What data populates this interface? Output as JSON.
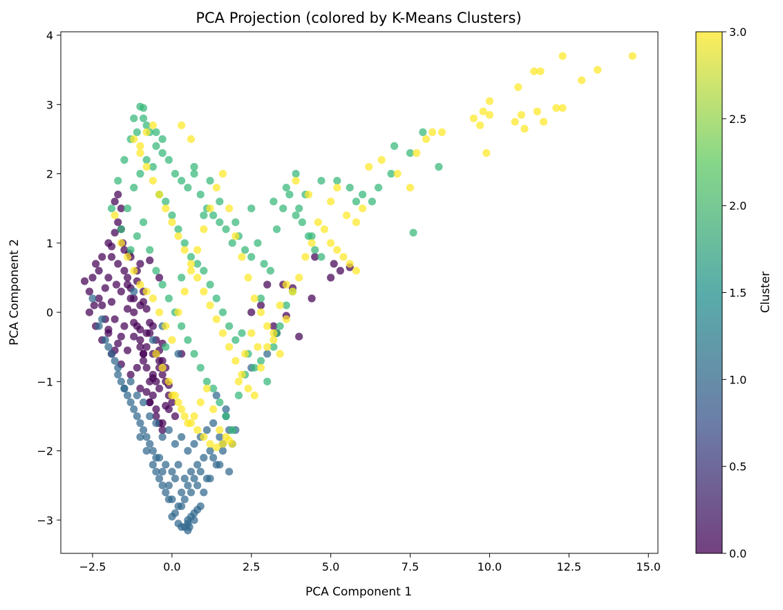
{
  "chart_data": {
    "type": "scatter",
    "title": "PCA Projection (colored by K-Means Clusters)",
    "xlabel": "PCA Component 1",
    "ylabel": "PCA Component 2",
    "xlim": [
      -3.5,
      15.3
    ],
    "ylim": [
      -3.48,
      4.05
    ],
    "xticks": [
      -2.5,
      0.0,
      2.5,
      5.0,
      7.5,
      10.0,
      12.5,
      15.0
    ],
    "xtick_labels": [
      "−2.5",
      "0.0",
      "2.5",
      "5.0",
      "7.5",
      "10.0",
      "12.5",
      "15.0"
    ],
    "yticks": [
      -3,
      -2,
      -1,
      0,
      1,
      2,
      3,
      4
    ],
    "ytick_labels": [
      "−3",
      "−2",
      "−1",
      "0",
      "1",
      "2",
      "3",
      "4"
    ],
    "grid": false,
    "colorbar": {
      "label": "Cluster",
      "range": [
        0.0,
        3.0
      ],
      "ticks": [
        0.0,
        0.5,
        1.0,
        1.5,
        2.0,
        2.5,
        3.0
      ],
      "tick_labels": [
        "0.0",
        "0.5",
        "1.0",
        "1.5",
        "2.0",
        "2.5",
        "3.0"
      ],
      "colormap": "viridis",
      "stops": [
        "#440154",
        "#3b528b",
        "#21918c",
        "#5ec962",
        "#fde725"
      ]
    },
    "cluster_colors": {
      "0": "#440154",
      "1": "#31688e",
      "2": "#35b779",
      "3": "#fde725"
    },
    "series": [
      {
        "cluster": 0,
        "x": [
          -2.75,
          -2.6,
          -2.5,
          -2.45,
          -2.4,
          -2.3,
          -2.2,
          -2.1,
          -2.0,
          -1.9,
          -1.8,
          -1.7,
          -1.6,
          -1.5,
          -1.4,
          -1.3,
          -1.2,
          -1.1,
          -1.0,
          -0.9,
          -0.8,
          -0.7,
          -0.6,
          -0.5,
          -0.4,
          -0.3,
          -2.6,
          -2.4,
          -2.2,
          -2.0,
          -1.8,
          -1.6,
          -1.4,
          -1.2,
          -1.0,
          -0.8,
          -0.6,
          -0.4,
          -2.3,
          -2.1,
          -1.9,
          -1.7,
          -1.5,
          -1.3,
          -1.1,
          -0.9,
          -0.7,
          -0.5,
          -0.3,
          -0.1,
          -2.2,
          -2.0,
          -1.8,
          -1.6,
          -1.4,
          -1.2,
          -1.0,
          -0.8,
          -0.6,
          -0.4,
          -0.2,
          0.0,
          -1.9,
          -1.7,
          -1.5,
          -1.3,
          -1.1,
          -0.9,
          -0.7,
          -0.5,
          -0.3,
          -0.1,
          0.1,
          -1.6,
          -1.4,
          -1.2,
          -1.0,
          -0.8,
          -0.6,
          -0.4,
          -0.2,
          -1.3,
          -1.1,
          -0.9,
          -0.7,
          -0.5,
          -0.3,
          -0.1,
          -1.0,
          -0.8,
          -0.6,
          -0.4,
          -0.2,
          -0.7,
          -0.5,
          -0.3,
          -2.0,
          -1.9,
          -1.8,
          -1.7,
          -1.6,
          -1.75,
          -1.55,
          -1.35,
          -1.0,
          -0.9,
          -0.7,
          -0.4,
          0.3,
          2.5,
          3.0,
          3.3,
          3.5,
          3.8,
          4.4,
          4.5,
          5.0,
          5.3,
          5.6,
          5.1,
          2.8,
          3.2,
          3.6,
          4.0
        ],
        "y": [
          0.45,
          0.3,
          0.5,
          0.1,
          0.7,
          0.2,
          0.8,
          -0.1,
          0.5,
          0.95,
          1.15,
          1.3,
          1.2,
          0.6,
          0.4,
          0.2,
          0.0,
          -0.2,
          -0.4,
          -0.6,
          -0.8,
          -1.0,
          -1.2,
          -1.4,
          -1.6,
          -1.7,
          0.0,
          -0.2,
          0.1,
          -0.3,
          -0.1,
          0.3,
          0.5,
          0.2,
          -0.5,
          -0.3,
          -0.9,
          -1.1,
          0.6,
          0.35,
          0.15,
          0.7,
          0.9,
          0.8,
          0.6,
          -0.7,
          -1.3,
          -1.0,
          -0.7,
          -1.2,
          -0.4,
          -0.25,
          -0.55,
          -0.35,
          0.05,
          -0.15,
          -0.25,
          -0.5,
          -0.6,
          -0.8,
          -1.0,
          -1.3,
          -0.6,
          -0.45,
          -0.2,
          0.35,
          0.45,
          0.15,
          -0.15,
          -0.4,
          -0.9,
          -1.05,
          -1.5,
          -0.75,
          -0.55,
          -0.35,
          0.1,
          0.05,
          -0.2,
          -0.55,
          -0.8,
          -0.9,
          -0.8,
          -0.6,
          -0.3,
          -0.6,
          -0.45,
          -1.4,
          -1.1,
          -1.15,
          -0.95,
          -0.7,
          -1.35,
          -1.3,
          -1.5,
          -1.6,
          1.0,
          0.8,
          1.6,
          1.7,
          1.5,
          0.4,
          1.0,
          0.85,
          0.7,
          0.3,
          0.75,
          0.5,
          -0.6,
          0.0,
          0.4,
          -0.3,
          0.4,
          0.35,
          0.2,
          0.8,
          0.5,
          0.6,
          0.65,
          0.7,
          0.1,
          -0.2,
          -0.05,
          -0.35
        ]
      },
      {
        "cluster": 1,
        "x": [
          -2.5,
          -2.3,
          -2.1,
          -1.9,
          -1.7,
          -1.5,
          -1.3,
          -1.1,
          -0.9,
          -0.7,
          -0.5,
          -0.3,
          -0.1,
          0.1,
          0.3,
          0.5,
          0.7,
          0.9,
          1.1,
          1.3,
          1.5,
          1.7,
          -2.2,
          -2.0,
          -1.8,
          -1.6,
          -1.4,
          -1.2,
          -1.0,
          -0.8,
          -0.6,
          -0.4,
          -0.2,
          0.0,
          0.2,
          0.4,
          0.6,
          0.8,
          1.0,
          1.2,
          1.4,
          1.6,
          1.8,
          -1.7,
          -1.5,
          -1.3,
          -1.1,
          -0.9,
          -0.7,
          -0.5,
          -0.3,
          -0.1,
          0.1,
          0.3,
          0.5,
          0.7,
          0.9,
          1.1,
          1.3,
          1.5,
          -1.0,
          -0.8,
          -0.6,
          -0.4,
          -0.2,
          0.0,
          0.2,
          0.4,
          0.6,
          0.8,
          1.0,
          1.2,
          -0.5,
          -0.3,
          -0.1,
          0.1,
          0.3,
          0.5,
          0.7,
          0.9,
          0.0,
          0.2,
          0.4,
          0.6,
          0.8,
          0.3,
          0.5,
          0.7,
          0.5,
          0.55,
          1.6,
          1.9,
          2.0,
          1.8,
          0.2,
          -0.6,
          1.7,
          1.4,
          2.5,
          3.0,
          -1.2,
          -0.3
        ],
        "y": [
          0.2,
          -0.2,
          -0.4,
          -0.6,
          -0.8,
          -1.1,
          -1.0,
          -1.2,
          -1.3,
          -1.5,
          -1.6,
          -1.8,
          -1.7,
          -1.9,
          -1.8,
          -2.0,
          -1.9,
          -1.8,
          -1.7,
          -1.6,
          -1.8,
          -1.5,
          -0.1,
          -0.5,
          -0.7,
          -1.0,
          -1.2,
          -1.4,
          -1.6,
          -1.8,
          -2.0,
          -2.1,
          -2.2,
          -2.3,
          -2.2,
          -2.4,
          -2.3,
          -2.2,
          -2.1,
          -2.0,
          -2.2,
          -1.9,
          -1.7,
          -0.9,
          -1.1,
          -1.3,
          -1.5,
          -1.7,
          -1.9,
          -2.1,
          -2.3,
          -2.5,
          -2.4,
          -2.6,
          -2.5,
          -2.4,
          -2.3,
          -2.4,
          -2.1,
          -2.2,
          -1.8,
          -2.0,
          -2.2,
          -2.4,
          -2.6,
          -2.7,
          -2.8,
          -2.7,
          -2.6,
          -2.5,
          -2.6,
          -2.4,
          -2.3,
          -2.5,
          -2.7,
          -2.9,
          -2.8,
          -3.0,
          -2.9,
          -2.8,
          -2.95,
          -3.05,
          -3.1,
          -2.95,
          -2.85,
          -3.1,
          -3.05,
          -3.0,
          -3.15,
          -3.1,
          -2.0,
          -1.9,
          -1.7,
          -2.3,
          -0.6,
          -0.4,
          -1.4,
          -1.2,
          -0.8,
          -0.6,
          0.3,
          -0.2
        ]
      },
      {
        "cluster": 2,
        "x": [
          -1.9,
          -1.7,
          -1.5,
          -1.3,
          -1.1,
          -0.9,
          -0.7,
          -0.5,
          -0.3,
          -0.1,
          0.1,
          0.3,
          0.5,
          0.7,
          0.9,
          1.1,
          1.3,
          1.5,
          1.7,
          1.9,
          2.1,
          2.3,
          2.5,
          2.7,
          2.9,
          3.1,
          3.3,
          3.5,
          3.7,
          3.9,
          4.1,
          4.3,
          4.5,
          4.7,
          -1.6,
          -1.4,
          -1.2,
          -1.0,
          -0.8,
          -0.6,
          -0.4,
          -0.2,
          0.0,
          0.2,
          0.4,
          0.6,
          0.8,
          1.0,
          1.2,
          1.4,
          1.6,
          1.8,
          2.0,
          2.2,
          2.4,
          2.6,
          2.8,
          3.0,
          3.2,
          3.4,
          3.6,
          3.8,
          -1.3,
          -1.1,
          -0.9,
          -0.7,
          -0.5,
          -0.3,
          -0.1,
          0.1,
          0.3,
          0.5,
          0.7,
          0.9,
          1.1,
          1.3,
          1.5,
          1.7,
          1.9,
          2.1,
          2.3,
          -0.9,
          -1.0,
          -0.8,
          -1.2,
          -0.5,
          -0.3,
          0.7,
          1.2,
          2.5,
          3.2,
          3.6,
          3.9,
          4.2,
          4.7,
          5.2,
          5.6,
          6.0,
          6.3,
          6.9,
          7.0,
          7.5,
          7.6,
          7.9,
          8.4,
          6.5,
          5.8,
          2.0,
          1.5,
          1.0,
          0.3,
          -0.2,
          2.8,
          3.3,
          4.0,
          4.4
        ],
        "y": [
          1.5,
          1.9,
          2.2,
          2.5,
          2.6,
          2.8,
          2.6,
          2.4,
          2.3,
          2.2,
          2.0,
          1.9,
          1.8,
          2.0,
          1.7,
          1.5,
          1.4,
          1.3,
          1.2,
          1.0,
          1.1,
          0.9,
          0.8,
          1.0,
          0.7,
          0.6,
          1.2,
          1.5,
          1.7,
          1.4,
          1.3,
          1.1,
          0.9,
          0.8,
          1.2,
          1.5,
          1.8,
          2.0,
          2.2,
          2.1,
          1.7,
          1.6,
          1.4,
          1.2,
          1.0,
          0.8,
          0.7,
          0.6,
          0.4,
          0.2,
          0.0,
          -0.2,
          -0.4,
          -0.3,
          -0.6,
          -0.8,
          -0.7,
          -1.0,
          -0.5,
          -0.2,
          0.1,
          0.3,
          0.9,
          1.1,
          1.3,
          0.9,
          0.6,
          0.4,
          0.2,
          0.0,
          -0.2,
          -0.4,
          -0.6,
          -0.8,
          -1.0,
          -1.1,
          -1.3,
          -1.5,
          -1.7,
          -1.2,
          -0.9,
          2.95,
          2.97,
          2.7,
          2.8,
          2.6,
          2.5,
          2.1,
          1.9,
          1.5,
          1.6,
          1.8,
          2.0,
          1.7,
          1.9,
          1.9,
          1.8,
          1.7,
          1.6,
          2.0,
          2.4,
          2.3,
          1.15,
          2.6,
          2.1,
          1.8,
          1.6,
          1.3,
          1.6,
          1.4,
          0.5,
          -0.5,
          0.2,
          -0.3,
          1.5,
          1.1
        ],
        "_note": ""
      },
      {
        "cluster": 3,
        "x": [
          -1.8,
          -1.6,
          -1.4,
          -1.2,
          -1.0,
          -0.8,
          -0.6,
          -0.4,
          -0.2,
          0.0,
          0.2,
          0.4,
          0.6,
          0.8,
          1.0,
          1.2,
          1.4,
          1.6,
          1.8,
          2.0,
          2.2,
          2.4,
          2.6,
          2.8,
          3.0,
          3.2,
          3.4,
          3.6,
          3.8,
          4.0,
          4.2,
          4.4,
          4.6,
          4.8,
          5.0,
          5.2,
          5.4,
          5.6,
          5.8,
          -1.2,
          -1.0,
          -0.8,
          -0.6,
          -0.4,
          -0.2,
          0.0,
          0.2,
          0.4,
          0.6,
          0.8,
          1.0,
          1.2,
          1.4,
          1.6,
          1.8,
          2.0,
          2.2,
          2.4,
          2.6,
          2.8,
          3.0,
          3.2,
          3.4,
          3.6,
          -0.5,
          -0.3,
          -0.1,
          0.1,
          0.3,
          0.5,
          0.7,
          0.9,
          1.1,
          1.3,
          1.5,
          1.7,
          1.9,
          2.1,
          2.3,
          2.5,
          2.7,
          0.0,
          0.2,
          0.4,
          0.6,
          0.8,
          1.0,
          1.2,
          1.4,
          1.6,
          1.8,
          -1.0,
          -0.8,
          -0.6,
          0.3,
          0.6,
          3.9,
          4.3,
          5.0,
          5.2,
          5.5,
          5.8,
          6.0,
          6.2,
          6.6,
          7.1,
          7.5,
          7.7,
          8.0,
          8.2,
          8.5,
          9.5,
          9.7,
          9.8,
          10.0,
          10.0,
          9.9,
          10.8,
          11.0,
          11.1,
          11.5,
          11.7,
          12.1,
          12.3,
          11.4,
          12.9,
          13.4,
          14.5,
          12.3,
          11.6,
          10.9
        ],
        "y": [
          1.4,
          1.0,
          0.8,
          0.6,
          0.4,
          0.3,
          0.2,
          0.0,
          -0.2,
          -0.4,
          0.0,
          0.3,
          0.6,
          0.9,
          1.2,
          1.5,
          1.8,
          2.0,
          1.5,
          1.1,
          0.8,
          0.5,
          0.2,
          0.0,
          -0.2,
          -0.4,
          -0.6,
          -0.1,
          0.3,
          0.5,
          0.8,
          1.0,
          1.3,
          1.2,
          1.0,
          0.9,
          0.8,
          0.7,
          0.6,
          2.5,
          2.3,
          2.1,
          1.9,
          1.7,
          1.5,
          1.3,
          1.1,
          0.9,
          0.7,
          0.5,
          0.3,
          0.1,
          -0.1,
          -0.3,
          -0.5,
          -0.7,
          -0.9,
          -1.1,
          -1.2,
          -0.8,
          -0.5,
          -0.3,
          0.1,
          0.4,
          -0.6,
          -0.8,
          -1.0,
          -1.2,
          -1.4,
          -1.6,
          -1.5,
          -1.3,
          -1.1,
          -1.4,
          -1.7,
          -1.8,
          -1.9,
          -1.0,
          -0.6,
          -0.3,
          -0.5,
          -1.2,
          -1.3,
          -1.5,
          -1.6,
          -1.7,
          -1.8,
          -1.9,
          -1.95,
          -1.9,
          -1.85,
          2.4,
          2.6,
          2.7,
          2.7,
          2.5,
          1.9,
          1.7,
          1.6,
          1.8,
          1.4,
          1.3,
          1.5,
          2.1,
          2.2,
          2.0,
          1.8,
          2.3,
          2.5,
          2.6,
          2.6,
          2.8,
          2.7,
          2.9,
          3.05,
          2.85,
          2.3,
          2.75,
          2.85,
          2.65,
          2.9,
          2.75,
          2.95,
          2.95,
          3.48,
          3.35,
          3.5,
          3.7,
          3.7,
          3.48,
          3.25
        ]
      }
    ]
  }
}
